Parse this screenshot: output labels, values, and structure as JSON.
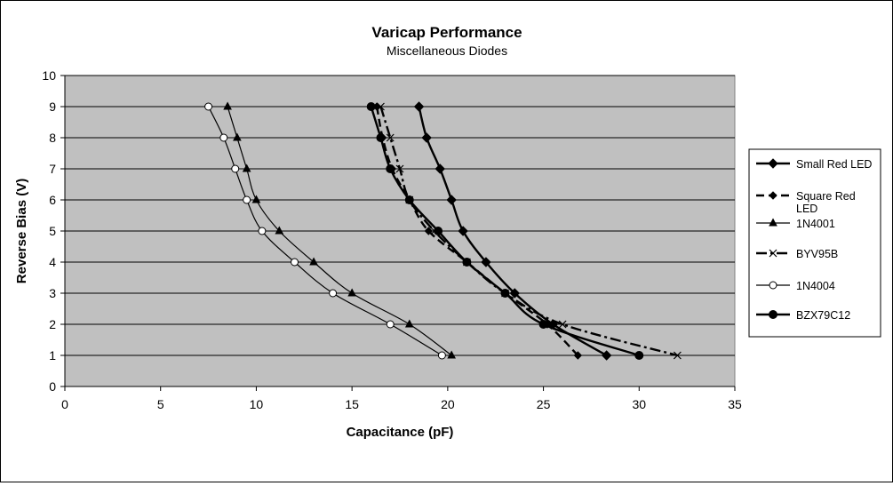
{
  "chart_data": {
    "type": "scatter",
    "title": "Varicap Performance",
    "subtitle": "Miscellaneous Diodes",
    "xlabel": "Capacitance (pF)",
    "ylabel": "Reverse Bias (V)",
    "xlim": [
      0,
      35
    ],
    "ylim": [
      0,
      10
    ],
    "xticks": [
      "0",
      "5",
      "10",
      "15",
      "20",
      "25",
      "30",
      "35"
    ],
    "yticks": [
      "0",
      "1",
      "2",
      "3",
      "4",
      "5",
      "6",
      "7",
      "8",
      "9",
      "10"
    ],
    "grid": "horizontal",
    "plot_background": "#c0c0c0",
    "legend_position": "right",
    "series": [
      {
        "name": "Small Red LED",
        "marker": "diamond",
        "dash": "solid",
        "width": 2.4,
        "points": [
          [
            18.5,
            9
          ],
          [
            18.9,
            8
          ],
          [
            19.6,
            7
          ],
          [
            20.2,
            6
          ],
          [
            20.8,
            5
          ],
          [
            22.0,
            4
          ],
          [
            23.5,
            3
          ],
          [
            25.5,
            2
          ],
          [
            28.3,
            1
          ]
        ]
      },
      {
        "name": "Square Red LED",
        "marker": "diamond-small",
        "dash": "dash",
        "width": 2.4,
        "points": [
          [
            16.3,
            9
          ],
          [
            16.6,
            8
          ],
          [
            17.1,
            7
          ],
          [
            18.0,
            6
          ],
          [
            19.0,
            5
          ],
          [
            21.0,
            4
          ],
          [
            23.0,
            3
          ],
          [
            25.2,
            2
          ],
          [
            26.8,
            1
          ]
        ]
      },
      {
        "name": "1N4001",
        "marker": "triangle",
        "dash": "solid",
        "width": 1.2,
        "points": [
          [
            8.5,
            9
          ],
          [
            9.0,
            8
          ],
          [
            9.5,
            7
          ],
          [
            10.0,
            6
          ],
          [
            11.2,
            5
          ],
          [
            13.0,
            4
          ],
          [
            15.0,
            3
          ],
          [
            18.0,
            2
          ],
          [
            20.2,
            1
          ]
        ]
      },
      {
        "name": "BYV95B",
        "marker": "x",
        "dash": "dashdot",
        "width": 2.4,
        "points": [
          [
            16.5,
            9
          ],
          [
            17.0,
            8
          ],
          [
            17.5,
            7
          ],
          [
            18.0,
            6
          ],
          [
            19.3,
            5
          ],
          [
            21.0,
            4
          ],
          [
            23.0,
            3
          ],
          [
            26.0,
            2
          ],
          [
            32.0,
            1
          ]
        ]
      },
      {
        "name": "1N4004",
        "marker": "circle-open",
        "dash": "solid",
        "width": 1.2,
        "points": [
          [
            7.5,
            9
          ],
          [
            8.3,
            8
          ],
          [
            8.9,
            7
          ],
          [
            9.5,
            6
          ],
          [
            10.3,
            5
          ],
          [
            12.0,
            4
          ],
          [
            14.0,
            3
          ],
          [
            17.0,
            2
          ],
          [
            19.7,
            1
          ]
        ]
      },
      {
        "name": "BZX79C12",
        "marker": "circle-filled",
        "dash": "solid",
        "width": 2.4,
        "points": [
          [
            16.0,
            9
          ],
          [
            16.5,
            8
          ],
          [
            17.0,
            7
          ],
          [
            18.0,
            6
          ],
          [
            19.5,
            5
          ],
          [
            21.0,
            4
          ],
          [
            23.0,
            3
          ],
          [
            25.0,
            2
          ],
          [
            30.0,
            1
          ]
        ]
      }
    ]
  }
}
